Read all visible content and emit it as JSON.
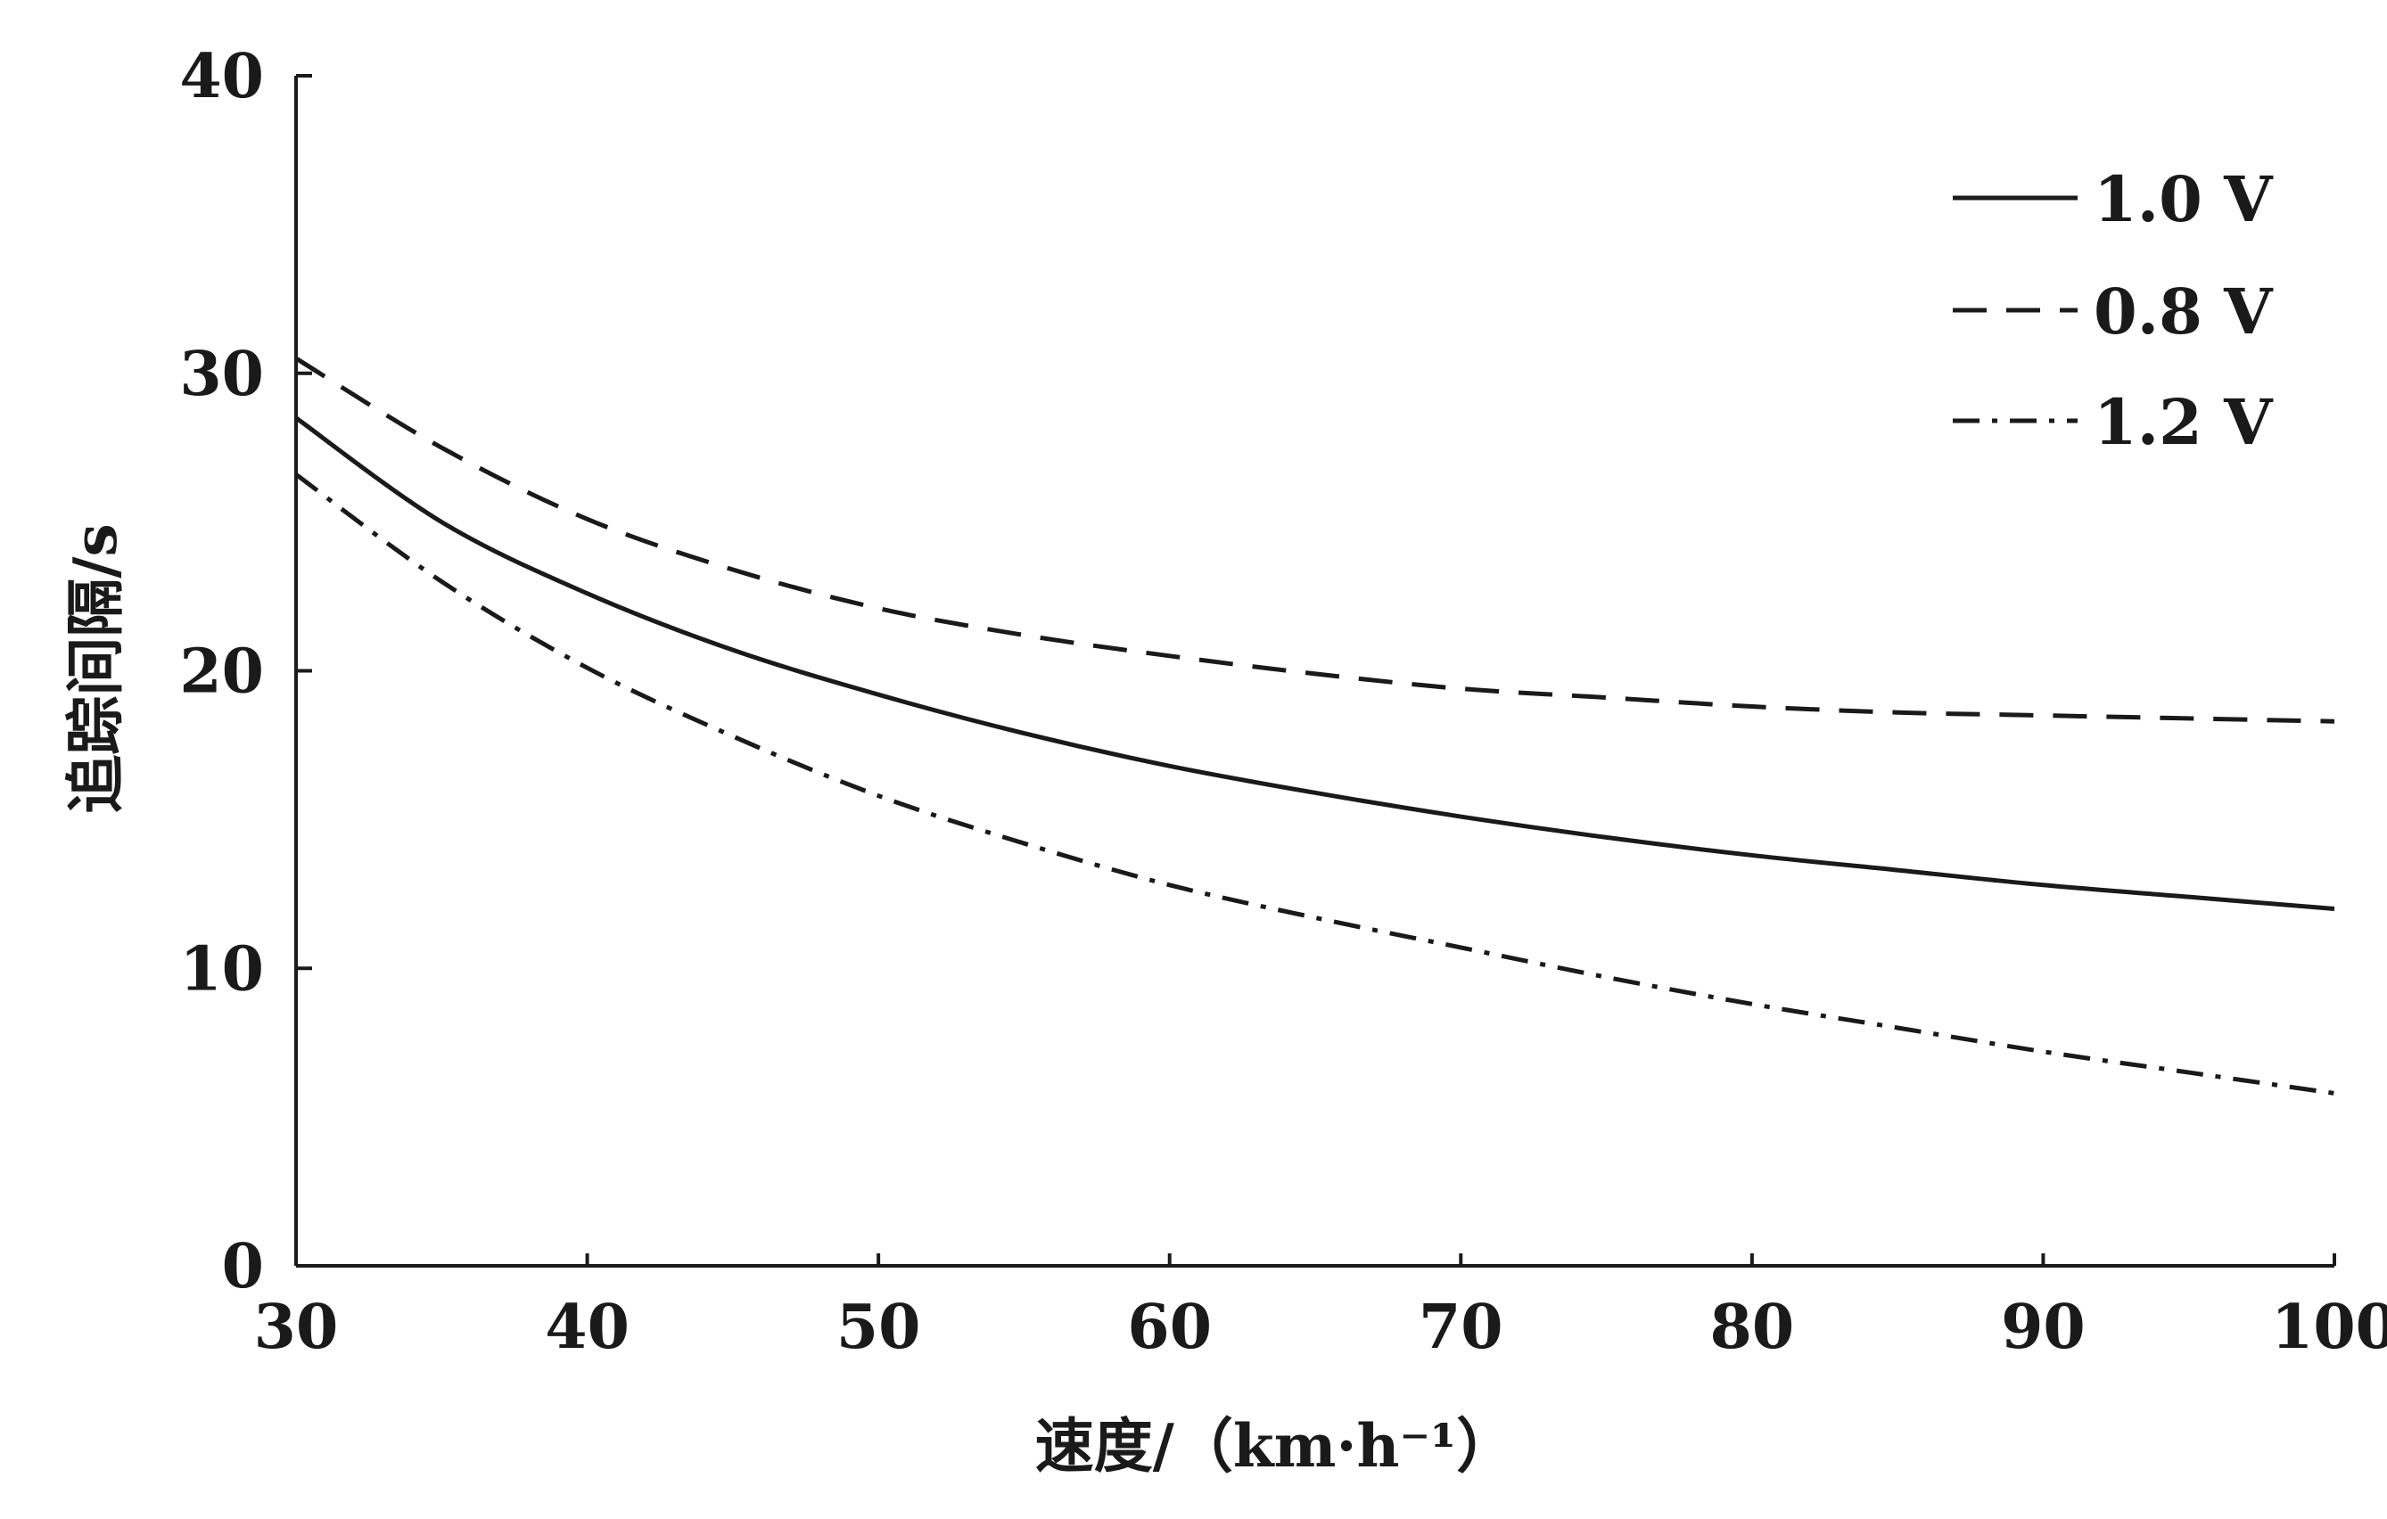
{
  "chart_data": {
    "type": "line",
    "xlabel": "速度/（km·h⁻¹）",
    "ylabel": "追踪间隔/s",
    "xlim": [
      30,
      100
    ],
    "ylim": [
      0,
      40
    ],
    "xticks": [
      "30",
      "40",
      "50",
      "60",
      "70",
      "80",
      "90",
      "100"
    ],
    "yticks": [
      "0",
      "10",
      "20",
      "30",
      "40"
    ],
    "grid": false,
    "legend_position": "top-right",
    "x": [
      30,
      35,
      40,
      45,
      50,
      55,
      60,
      65,
      70,
      75,
      80,
      85,
      90,
      95,
      100
    ],
    "series": [
      {
        "name": "1.0 V",
        "style": "solid",
        "values": [
          28.5,
          25.0,
          22.6,
          20.7,
          19.2,
          17.9,
          16.8,
          15.9,
          15.1,
          14.4,
          13.8,
          13.3,
          12.8,
          12.4,
          12.0
        ]
      },
      {
        "name": "0.8 V",
        "style": "dashed",
        "values": [
          30.5,
          27.5,
          25.1,
          23.4,
          22.1,
          21.2,
          20.5,
          19.9,
          19.4,
          19.1,
          18.8,
          18.6,
          18.5,
          18.4,
          18.3
        ]
      },
      {
        "name": "1.2 V",
        "style": "dashdot",
        "values": [
          26.6,
          23.0,
          20.1,
          17.8,
          15.8,
          14.2,
          12.8,
          11.7,
          10.7,
          9.7,
          8.8,
          8.0,
          7.2,
          6.5,
          5.8
        ]
      }
    ]
  },
  "colors": {
    "line": "#1a1a1a",
    "axis": "#1a1a1a",
    "background": "#ffffff"
  }
}
